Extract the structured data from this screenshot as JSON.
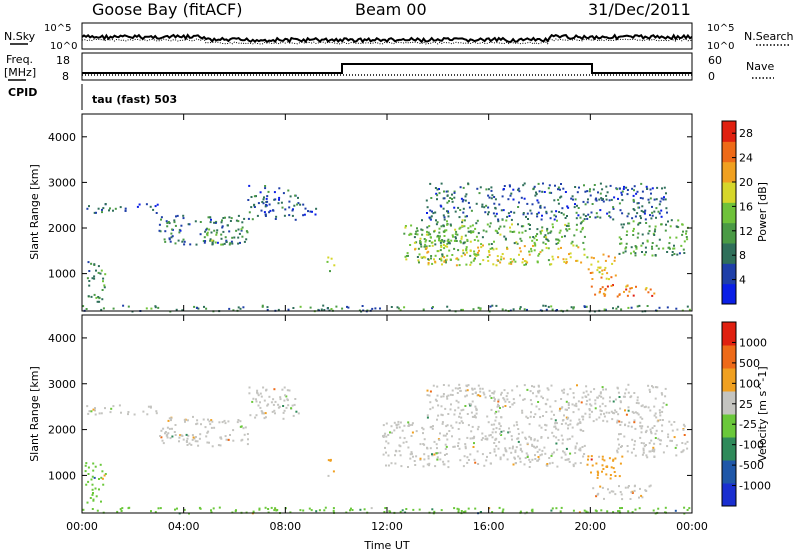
{
  "header": {
    "station": "Goose Bay (fitACF)",
    "beam": "Beam 00",
    "date": "31/Dec/2011"
  },
  "strip_labels": {
    "nsky": "N.Sky",
    "nsearch": "N.Search",
    "freq_line1": "Freq.",
    "freq_line2": "[MHz]",
    "nave": "Nave",
    "cpid": "CPID",
    "cpid_value": "tau (fast) 503"
  },
  "strip_ticks": {
    "noise_left": [
      "10^5",
      "10^0"
    ],
    "noise_right": [
      "10^5",
      "10^0"
    ],
    "freq_left": [
      "18",
      "8"
    ],
    "nave_right": [
      "60",
      "0"
    ]
  },
  "chart_data": [
    {
      "type": "heatmap",
      "name": "power",
      "xlabel": "Time UT",
      "ylabel": "Slant Range [km]",
      "x_ticks": [
        "00:00",
        "04:00",
        "08:00",
        "12:00",
        "16:00",
        "20:00",
        "00:00"
      ],
      "y_ticks": [
        1000,
        2000,
        3000,
        4000
      ],
      "ylim": [
        180,
        4500
      ],
      "xlim_hours": [
        0,
        24
      ],
      "colorbar": {
        "label": "Power [dB]",
        "ticks": [
          4,
          8,
          12,
          16,
          20,
          24,
          28
        ],
        "range": [
          0,
          30
        ],
        "colors": [
          "#0a1fe6",
          "#1f3fa8",
          "#2f6f5a",
          "#4a9a45",
          "#6fc23a",
          "#d6d62a",
          "#f0a020",
          "#ee6a18",
          "#e02010"
        ]
      },
      "regions": [
        {
          "t0": 0.1,
          "t1": 0.9,
          "r0": 400,
          "r1": 1300,
          "level": 10
        },
        {
          "t0": 0.1,
          "t1": 3.0,
          "r0": 2350,
          "r1": 2550,
          "level": 6
        },
        {
          "t0": 3.0,
          "t1": 6.5,
          "r0": 1650,
          "r1": 2300,
          "level": 7
        },
        {
          "t0": 4.8,
          "t1": 6.3,
          "r0": 1650,
          "r1": 2000,
          "level": 12
        },
        {
          "t0": 6.5,
          "t1": 8.5,
          "r0": 2200,
          "r1": 2950,
          "level": 6
        },
        {
          "t0": 8.5,
          "t1": 9.2,
          "r0": 2300,
          "r1": 2600,
          "level": 4
        },
        {
          "t0": 9.6,
          "t1": 9.9,
          "r0": 1000,
          "r1": 1400,
          "level": 14
        },
        {
          "t0": 0.0,
          "t1": 24.0,
          "r0": 190,
          "r1": 320,
          "level": 9
        },
        {
          "t0": 12.6,
          "t1": 15.5,
          "r0": 1300,
          "r1": 2100,
          "level": 13
        },
        {
          "t0": 13.0,
          "t1": 19.8,
          "r0": 1200,
          "r1": 1650,
          "level": 18
        },
        {
          "t0": 13.0,
          "t1": 19.8,
          "r0": 1650,
          "r1": 2200,
          "level": 12
        },
        {
          "t0": 13.5,
          "t1": 23.0,
          "r0": 2200,
          "r1": 3000,
          "level": 6
        },
        {
          "t0": 19.8,
          "t1": 21.0,
          "r0": 900,
          "r1": 1450,
          "level": 22
        },
        {
          "t0": 20.0,
          "t1": 22.5,
          "r0": 500,
          "r1": 800,
          "level": 25
        },
        {
          "t0": 21.0,
          "t1": 23.8,
          "r0": 1400,
          "r1": 2200,
          "level": 11
        }
      ]
    },
    {
      "type": "heatmap",
      "name": "velocity",
      "xlabel": "Time UT",
      "ylabel": "Slant Range [km]",
      "x_ticks": [
        "00:00",
        "04:00",
        "08:00",
        "12:00",
        "16:00",
        "20:00",
        "00:00"
      ],
      "y_ticks": [
        1000,
        2000,
        3000,
        4000
      ],
      "ylim": [
        180,
        4500
      ],
      "xlim_hours": [
        0,
        24
      ],
      "colorbar": {
        "label": "Velocity [m s^-1]",
        "ticks": [
          "1000",
          "500",
          "100",
          "25",
          "-25",
          "-100",
          "-500",
          "-1000"
        ],
        "colors": [
          "#1a2fd0",
          "#1f57a8",
          "#2f8a5a",
          "#6ac83a",
          "#c4c4c0",
          "#f0a020",
          "#ee6a18",
          "#e02010"
        ]
      },
      "regions": [
        {
          "t0": 0.1,
          "t1": 0.9,
          "r0": 400,
          "r1": 1300,
          "level": 3
        },
        {
          "t0": 0.1,
          "t1": 3.0,
          "r0": 2350,
          "r1": 2550,
          "level": 4
        },
        {
          "t0": 3.0,
          "t1": 6.5,
          "r0": 1650,
          "r1": 2300,
          "level": 4
        },
        {
          "t0": 6.5,
          "t1": 8.5,
          "r0": 2200,
          "r1": 2950,
          "level": 4
        },
        {
          "t0": 9.6,
          "t1": 9.9,
          "r0": 1000,
          "r1": 1400,
          "level": 5
        },
        {
          "t0": 0.0,
          "t1": 24.0,
          "r0": 190,
          "r1": 320,
          "level": 3
        },
        {
          "t0": 11.8,
          "t1": 19.8,
          "r0": 1200,
          "r1": 2200,
          "level": 4
        },
        {
          "t0": 13.5,
          "t1": 23.0,
          "r0": 2200,
          "r1": 3000,
          "level": 4
        },
        {
          "t0": 19.8,
          "t1": 21.2,
          "r0": 900,
          "r1": 1450,
          "level": 5
        },
        {
          "t0": 20.0,
          "t1": 22.5,
          "r0": 500,
          "r1": 800,
          "level": 4
        },
        {
          "t0": 21.0,
          "t1": 23.8,
          "r0": 1400,
          "r1": 2200,
          "level": 4
        }
      ]
    }
  ]
}
